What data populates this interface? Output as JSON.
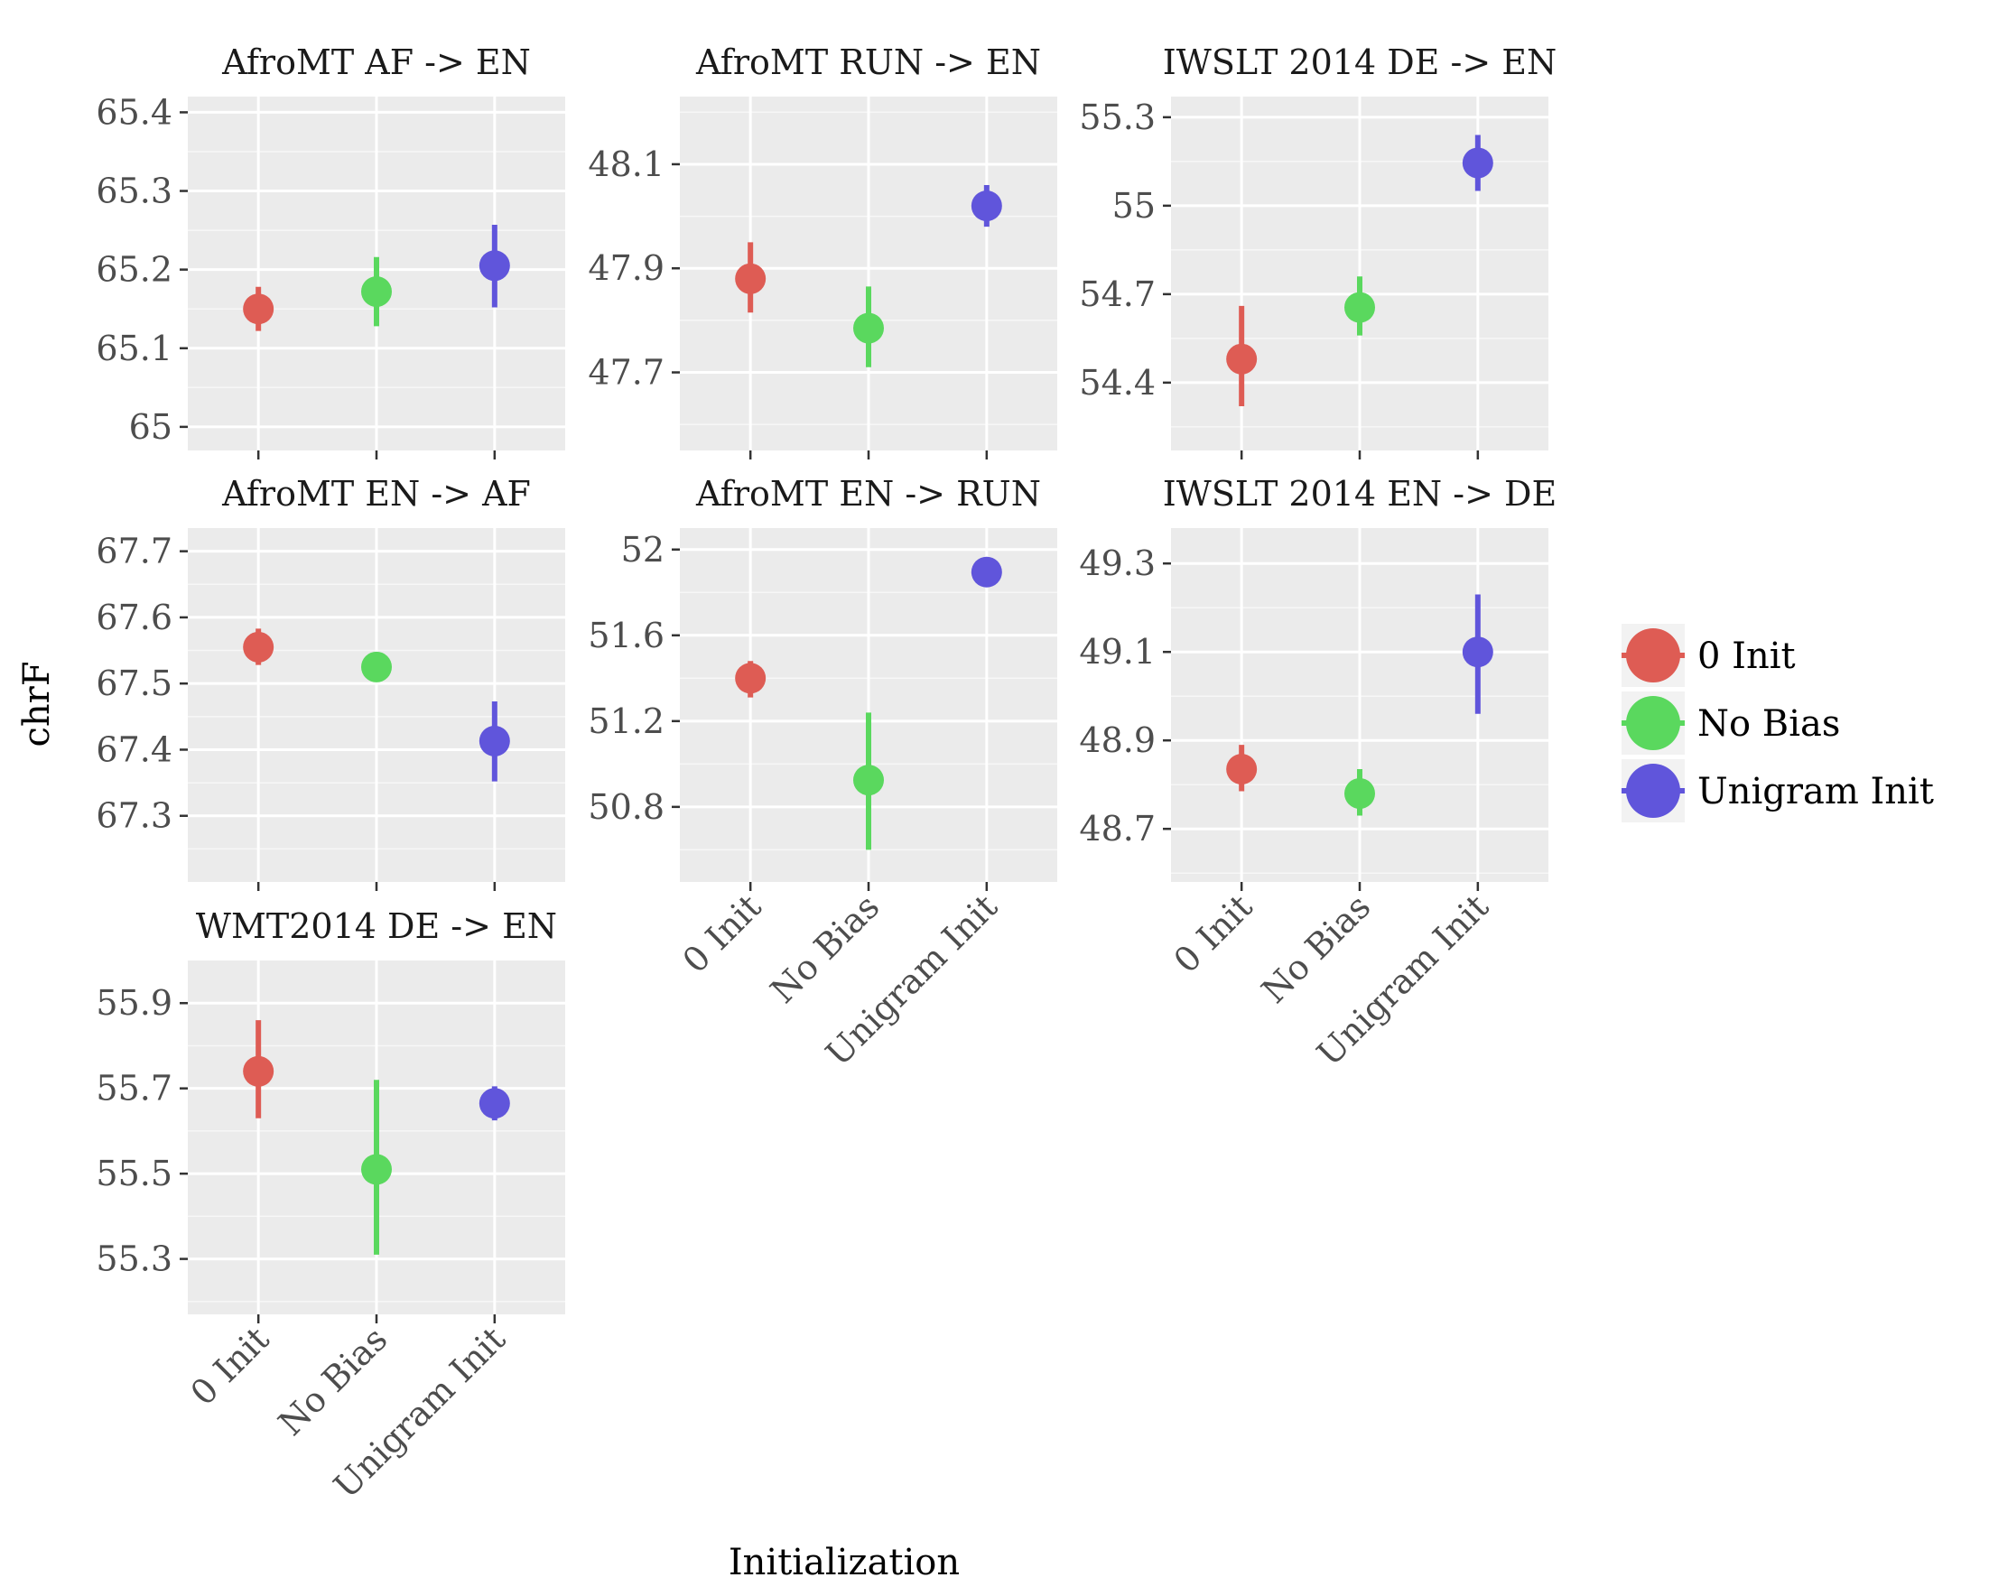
{
  "chart_data": {
    "type": "pointrange",
    "xlabel": "Initialization",
    "ylabel": "chrF",
    "categories": [
      "0 Init",
      "No Bias",
      "Unigram Init"
    ],
    "legend": {
      "position": "right",
      "entries": [
        {
          "label": "0 Init",
          "color": "#DE5C54"
        },
        {
          "label": "No Bias",
          "color": "#5AD85E"
        },
        {
          "label": "Unigram Init",
          "color": "#6055DB"
        }
      ]
    },
    "panels": [
      {
        "title": "AfroMT AF -> EN",
        "ylim": [
          64.97,
          65.42
        ],
        "ticks": [
          65,
          65.1,
          65.2,
          65.3,
          65.4
        ],
        "tick_labels": [
          "65",
          "65.1",
          "65.2",
          "65.3",
          "65.4"
        ],
        "points": [
          {
            "category": "0 Init",
            "y": 65.15,
            "ymin": 65.122,
            "ymax": 65.178
          },
          {
            "category": "No Bias",
            "y": 65.172,
            "ymin": 65.128,
            "ymax": 65.216
          },
          {
            "category": "Unigram Init",
            "y": 65.205,
            "ymin": 65.152,
            "ymax": 65.257
          }
        ]
      },
      {
        "title": "AfroMT RUN -> EN",
        "ylim": [
          47.55,
          48.23
        ],
        "ticks": [
          47.7,
          47.9,
          48.1
        ],
        "tick_labels": [
          "47.7",
          "47.9",
          "48.1"
        ],
        "points": [
          {
            "category": "0 Init",
            "y": 47.88,
            "ymin": 47.815,
            "ymax": 47.95
          },
          {
            "category": "No Bias",
            "y": 47.785,
            "ymin": 47.71,
            "ymax": 47.865
          },
          {
            "category": "Unigram Init",
            "y": 48.02,
            "ymin": 47.98,
            "ymax": 48.06
          }
        ]
      },
      {
        "title": "IWSLT 2014 DE -> EN",
        "ylim": [
          54.17,
          55.37
        ],
        "ticks": [
          54.4,
          54.7,
          55,
          55.3
        ],
        "tick_labels": [
          "54.4",
          "54.7",
          "55",
          "55.3"
        ],
        "points": [
          {
            "category": "0 Init",
            "y": 54.48,
            "ymin": 54.32,
            "ymax": 54.66
          },
          {
            "category": "No Bias",
            "y": 54.655,
            "ymin": 54.56,
            "ymax": 54.76
          },
          {
            "category": "Unigram Init",
            "y": 55.145,
            "ymin": 55.05,
            "ymax": 55.24
          }
        ]
      },
      {
        "title": "AfroMT EN -> AF",
        "ylim": [
          67.2,
          67.735
        ],
        "ticks": [
          67.3,
          67.4,
          67.5,
          67.6,
          67.7
        ],
        "tick_labels": [
          "67.3",
          "67.4",
          "67.5",
          "67.6",
          "67.7"
        ],
        "points": [
          {
            "category": "0 Init",
            "y": 67.555,
            "ymin": 67.528,
            "ymax": 67.583
          },
          {
            "category": "No Bias",
            "y": 67.525,
            "ymin": 67.518,
            "ymax": 67.532
          },
          {
            "category": "Unigram Init",
            "y": 67.413,
            "ymin": 67.352,
            "ymax": 67.473
          }
        ]
      },
      {
        "title": "AfroMT EN -> RUN",
        "ylim": [
          50.45,
          52.1
        ],
        "ticks": [
          50.8,
          51.2,
          51.6,
          52
        ],
        "tick_labels": [
          "50.8",
          "51.2",
          "51.6",
          "52"
        ],
        "points": [
          {
            "category": "0 Init",
            "y": 51.4,
            "ymin": 51.31,
            "ymax": 51.48
          },
          {
            "category": "No Bias",
            "y": 50.925,
            "ymin": 50.6,
            "ymax": 51.24
          },
          {
            "category": "Unigram Init",
            "y": 51.895,
            "ymin": 51.885,
            "ymax": 51.905
          }
        ]
      },
      {
        "title": "IWSLT 2014 EN -> DE",
        "ylim": [
          48.58,
          49.38
        ],
        "ticks": [
          48.7,
          48.9,
          49.1,
          49.3
        ],
        "tick_labels": [
          "48.7",
          "48.9",
          "49.1",
          "49.3"
        ],
        "points": [
          {
            "category": "0 Init",
            "y": 48.835,
            "ymin": 48.785,
            "ymax": 48.89
          },
          {
            "category": "No Bias",
            "y": 48.78,
            "ymin": 48.73,
            "ymax": 48.835
          },
          {
            "category": "Unigram Init",
            "y": 49.1,
            "ymin": 48.96,
            "ymax": 49.23
          }
        ]
      },
      {
        "title": "WMT2014 DE -> EN",
        "ylim": [
          55.17,
          56.0
        ],
        "ticks": [
          55.3,
          55.5,
          55.7,
          55.9
        ],
        "tick_labels": [
          "55.3",
          "55.5",
          "55.7",
          "55.9"
        ],
        "points": [
          {
            "category": "0 Init",
            "y": 55.74,
            "ymin": 55.63,
            "ymax": 55.86
          },
          {
            "category": "No Bias",
            "y": 55.51,
            "ymin": 55.31,
            "ymax": 55.72
          },
          {
            "category": "Unigram Init",
            "y": 55.665,
            "ymin": 55.625,
            "ymax": 55.705
          }
        ]
      }
    ]
  }
}
